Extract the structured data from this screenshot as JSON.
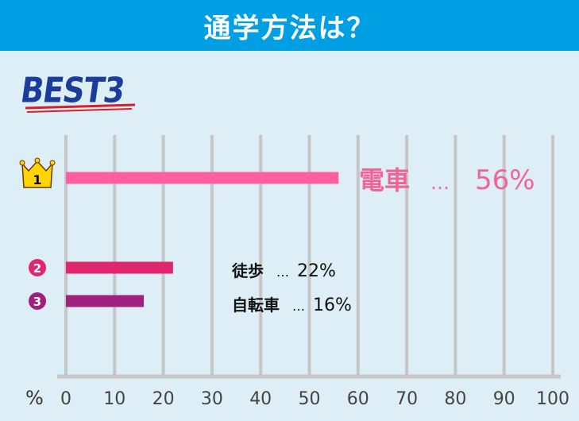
{
  "header": {
    "title": "通学方法は？"
  },
  "badge": {
    "text": "BEST3"
  },
  "colors": {
    "header_bg": "#009fe3",
    "page_bg": "#ddeef6",
    "grid": "#c6c6c6",
    "rank1": "#ff5f9e",
    "rank2": "#e0266d",
    "rank3": "#a0207f",
    "crown": "#ffd400"
  },
  "chart_data": {
    "type": "bar",
    "orientation": "horizontal",
    "title": "",
    "xlabel": "%",
    "ylabel": "",
    "xlim": [
      0,
      100
    ],
    "x_ticks": [
      "0",
      "10",
      "20",
      "30",
      "40",
      "50",
      "60",
      "70",
      "80",
      "90",
      "100"
    ],
    "grid": true,
    "legend": "none",
    "categories": [
      "電車",
      "徒歩",
      "自転車"
    ],
    "values": [
      56,
      22,
      16
    ],
    "unit": "%",
    "ranks": [
      "1",
      "2",
      "3"
    ],
    "separator": "…",
    "labels": [
      "56%",
      "22%",
      "16%"
    ]
  }
}
